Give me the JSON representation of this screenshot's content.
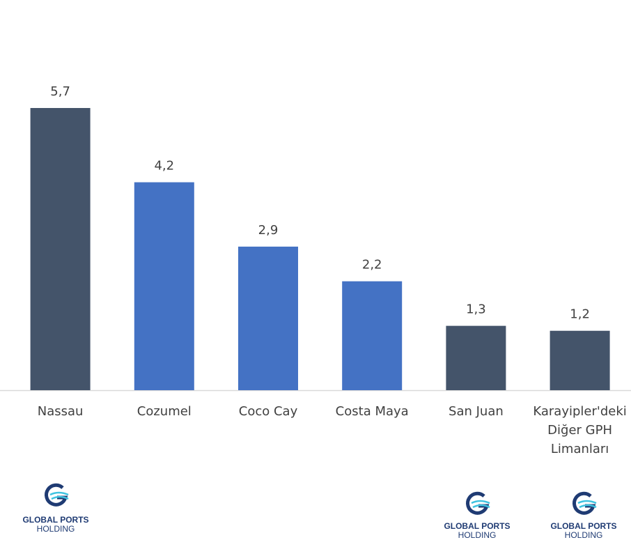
{
  "chart_data": {
    "type": "bar",
    "categories": [
      "Nassau",
      "Cozumel",
      "Coco Cay",
      "Costa Maya",
      "San Juan",
      "Karayipler'deki Diğer GPH Limanları"
    ],
    "values": [
      5.7,
      4.2,
      2.9,
      2.2,
      1.3,
      1.2
    ],
    "value_labels": [
      "5,7",
      "4,2",
      "2,9",
      "2,2",
      "1,3",
      "1,2"
    ],
    "colors": [
      "#44546a",
      "#4472c4",
      "#4472c4",
      "#4472c4",
      "#44546a",
      "#44546a"
    ]
  },
  "logo": {
    "name": "GLOBAL PORTS",
    "sub": "HOLDING"
  }
}
